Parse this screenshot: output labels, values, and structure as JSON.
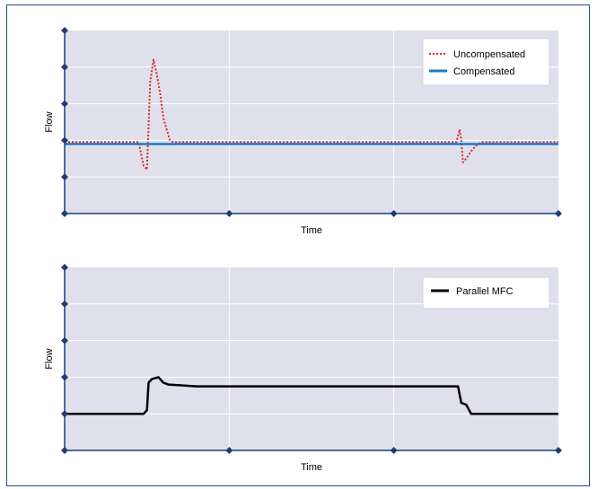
{
  "chart_data": [
    {
      "type": "line",
      "xlabel": "Time",
      "ylabel": "Flow",
      "xlim": [
        0,
        3
      ],
      "ylim": [
        0,
        5
      ],
      "grid": true,
      "legend_position": "top-right",
      "series": [
        {
          "name": "Uncompensated",
          "color": "#e0262b",
          "style": "dotted",
          "x": [
            0,
            0.45,
            0.48,
            0.5,
            0.52,
            0.54,
            0.56,
            0.58,
            0.6,
            0.62,
            0.64,
            0.66,
            0.7,
            2.38,
            2.4,
            2.41,
            2.42,
            2.44,
            2.47,
            2.5,
            2.53,
            2.56,
            3.0
          ],
          "y": [
            1.95,
            1.95,
            1.3,
            1.2,
            3.6,
            4.2,
            3.8,
            3.3,
            2.6,
            2.3,
            2.0,
            1.95,
            1.95,
            1.95,
            2.3,
            2.0,
            1.4,
            1.5,
            1.7,
            1.85,
            1.95,
            1.95,
            1.95
          ]
        },
        {
          "name": "Compensated",
          "color": "#1f7ac2",
          "style": "solid",
          "x": [
            0,
            3.0
          ],
          "y": [
            1.9,
            1.9
          ]
        }
      ]
    },
    {
      "type": "line",
      "xlabel": "Time",
      "ylabel": "Flow",
      "xlim": [
        0,
        3
      ],
      "ylim": [
        0,
        5
      ],
      "grid": true,
      "legend_position": "top-right",
      "series": [
        {
          "name": "Parallel MFC",
          "color": "#000000",
          "style": "solid",
          "x": [
            0,
            0.48,
            0.5,
            0.51,
            0.53,
            0.57,
            0.6,
            0.63,
            0.7,
            0.8,
            1.0,
            2.37,
            2.39,
            2.41,
            2.44,
            2.47,
            3.0
          ],
          "y": [
            1.0,
            1.0,
            1.1,
            1.85,
            1.95,
            2.0,
            1.85,
            1.8,
            1.78,
            1.75,
            1.75,
            1.75,
            1.75,
            1.3,
            1.25,
            1.0,
            1.0
          ]
        }
      ]
    }
  ]
}
